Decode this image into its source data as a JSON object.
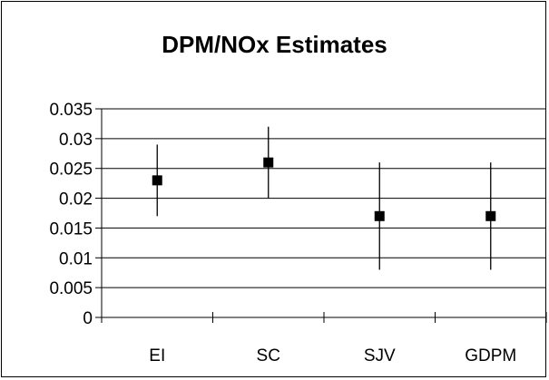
{
  "chart_data": {
    "type": "scatter",
    "title": "DPM/NOx Estimates",
    "xlabel": "",
    "ylabel": "",
    "categories": [
      "EI",
      "SC",
      "SJV",
      "GDPM"
    ],
    "series": [
      {
        "values": [
          0.023,
          0.026,
          0.017,
          0.017
        ],
        "error_low": [
          0.017,
          0.02,
          0.008,
          0.008
        ],
        "error_high": [
          0.029,
          0.032,
          0.026,
          0.026
        ]
      }
    ],
    "ylim": [
      0,
      0.035
    ],
    "yticks": [
      0,
      0.005,
      0.01,
      0.015,
      0.02,
      0.025,
      0.03,
      0.035
    ],
    "ytick_labels": [
      "0",
      "0.005",
      "0.01",
      "0.015",
      "0.02",
      "0.025",
      "0.03",
      "0.035"
    ],
    "grid": "horizontal",
    "legend": "none",
    "marker": "square",
    "color": "#000000"
  }
}
